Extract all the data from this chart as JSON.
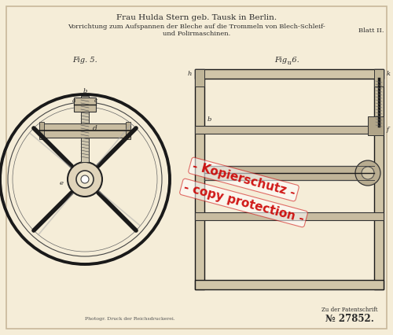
{
  "bg_color": "#f5edd8",
  "border_color": "#c8b89a",
  "title_line1": "Frau Hulda Stern geb. Tausk in Berlin.",
  "title_line2": "Vorrichtung zum Aufspannen der Bleche auf die Trommeln von Blech-Schleif-",
  "title_line3": "und Polirmaschinen.",
  "blatt": "Blatt II.",
  "fig5_label": "Fig. 5.",
  "fig6_label": "Fig. 6.",
  "bottom_left": "Photogr. Druck der Reichsdruckerei.",
  "patent_ref": "Zu der Patentschrift",
  "patent_num": "№ 27852.",
  "watermark_line1": "- Kopierschutz -",
  "watermark_line2": "- copy protection -",
  "text_color": "#2a2a2a",
  "light_text": "#555555",
  "watermark_color": "#cc0000"
}
